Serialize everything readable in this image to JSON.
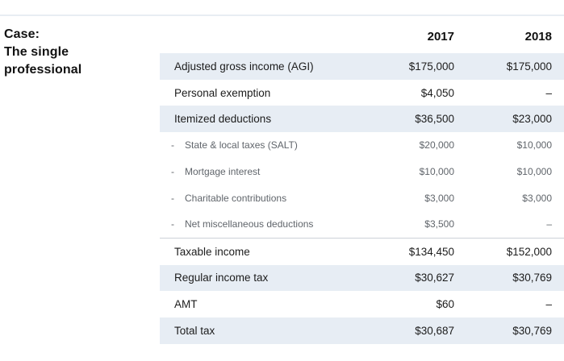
{
  "case": {
    "line1": "Case:",
    "line2": "The single",
    "line3": "professional"
  },
  "table": {
    "columns": [
      "2017",
      "2018"
    ],
    "sub_bullet": "-",
    "rows": [
      {
        "label": "Adjusted gross income (AGI)",
        "v2017": "$175,000",
        "v2018": "$175,000",
        "style": "main",
        "shaded": true
      },
      {
        "label": "Personal exemption",
        "v2017": "$4,050",
        "v2018": "–",
        "style": "main",
        "shaded": false
      },
      {
        "label": "Itemized deductions",
        "v2017": "$36,500",
        "v2018": "$23,000",
        "style": "main",
        "shaded": true
      },
      {
        "label": "State & local taxes (SALT)",
        "v2017": "$20,000",
        "v2018": "$10,000",
        "style": "sub",
        "shaded": false
      },
      {
        "label": "Mortgage interest",
        "v2017": "$10,000",
        "v2018": "$10,000",
        "style": "sub",
        "shaded": false
      },
      {
        "label": "Charitable contributions",
        "v2017": "$3,000",
        "v2018": "$3,000",
        "style": "sub",
        "shaded": false
      },
      {
        "label": "Net miscellaneous deductions",
        "v2017": "$3,500",
        "v2018": "–",
        "style": "sub",
        "shaded": false
      },
      {
        "label": "Taxable income",
        "v2017": "$134,450",
        "v2018": "$152,000",
        "style": "main",
        "shaded": false
      },
      {
        "label": "Regular income tax",
        "v2017": "$30,627",
        "v2018": "$30,769",
        "style": "main",
        "shaded": true
      },
      {
        "label": "AMT",
        "v2017": "$60",
        "v2018": "–",
        "style": "main",
        "shaded": false
      },
      {
        "label": "Total tax",
        "v2017": "$30,687",
        "v2018": "$30,769",
        "style": "main",
        "shaded": true
      }
    ]
  },
  "colors": {
    "shaded_row": "#e7edf4",
    "top_rule": "#e8edf3",
    "separator_line": "#cdd2d8",
    "sub_text": "#60656b",
    "main_text": "#1c1c1c"
  }
}
